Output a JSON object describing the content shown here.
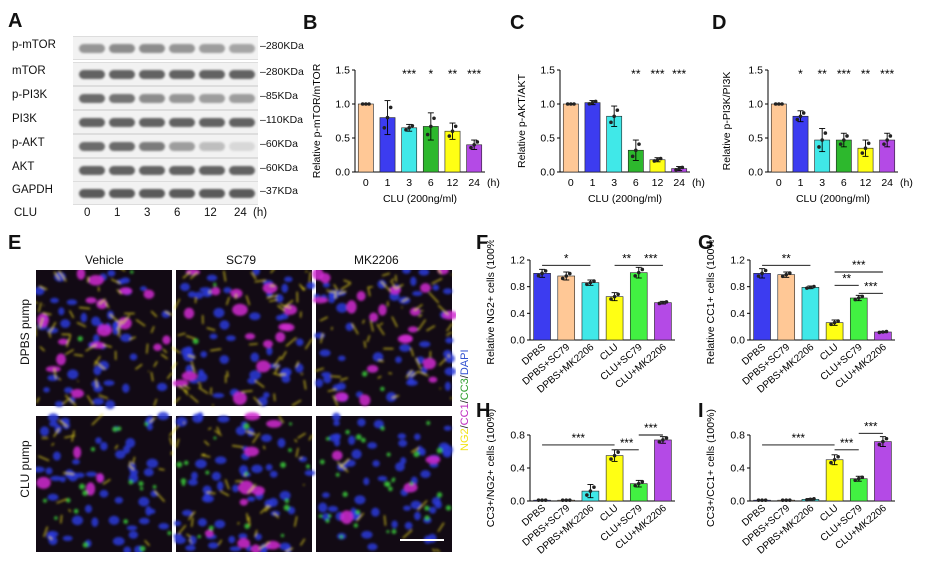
{
  "panels": {
    "A": "A",
    "B": "B",
    "C": "C",
    "D": "D",
    "E": "E",
    "F": "F",
    "G": "G",
    "H": "H",
    "I": "I"
  },
  "blot": {
    "rows": [
      {
        "name": "p-mTOR",
        "kda": "280KDa",
        "intensity": [
          0.55,
          0.6,
          0.6,
          0.55,
          0.5,
          0.45
        ]
      },
      {
        "name": "mTOR",
        "kda": "280KDa",
        "intensity": [
          0.85,
          0.85,
          0.85,
          0.85,
          0.85,
          0.85
        ]
      },
      {
        "name": "p-PI3K",
        "kda": "85KDa",
        "intensity": [
          0.8,
          0.75,
          0.6,
          0.55,
          0.5,
          0.5
        ]
      },
      {
        "name": "PI3K",
        "kda": "110KDa",
        "intensity": [
          0.85,
          0.85,
          0.85,
          0.85,
          0.85,
          0.85
        ]
      },
      {
        "name": "p-AKT",
        "kda": "60KDa",
        "intensity": [
          0.8,
          0.8,
          0.7,
          0.5,
          0.3,
          0.15
        ]
      },
      {
        "name": "AKT",
        "kda": "60KDa",
        "intensity": [
          0.85,
          0.85,
          0.85,
          0.85,
          0.85,
          0.85
        ]
      },
      {
        "name": "GAPDH",
        "kda": "37KDa",
        "intensity": [
          0.9,
          0.9,
          0.9,
          0.9,
          0.9,
          0.9
        ]
      }
    ],
    "clu_label": "CLU",
    "lanes": [
      "0",
      "1",
      "3",
      "6",
      "12",
      "24"
    ],
    "unit": "(h)"
  },
  "micro": {
    "cols": [
      "Vehicle",
      "SC79",
      "MK2206"
    ],
    "rows": [
      "DPBS pump",
      "CLU pump"
    ],
    "stain": [
      {
        "text": "NG2",
        "color": "#f2e318"
      },
      {
        "text": "/",
        "color": "#222"
      },
      {
        "text": "CC1",
        "color": "#c030c0"
      },
      {
        "text": "/",
        "color": "#222"
      },
      {
        "text": "CC3",
        "color": "#30a030"
      },
      {
        "text": "/",
        "color": "#222"
      },
      {
        "text": "DAPI",
        "color": "#3050d0"
      }
    ]
  },
  "colors": {
    "c0": "#ffc896",
    "c1": "#3c3cf0",
    "c2": "#40e8e8",
    "c3": "#2db82d",
    "c4": "#ffff14",
    "c5": "#b44ae6",
    "f0": "#3c3cf0",
    "f1": "#ffc896",
    "f2": "#40e8e8",
    "f3": "#ffff14",
    "f4": "#42f042",
    "f5": "#b44ae6"
  },
  "chart_data": [
    {
      "id": "B",
      "type": "bar",
      "ylabel": "Relative p-mTOR/mTOR",
      "xlabel": "CLU  (200ng/ml)",
      "categories": [
        "0",
        "1",
        "3",
        "6",
        "12",
        "24"
      ],
      "unit": "(h)",
      "values": [
        1.0,
        0.8,
        0.65,
        0.67,
        0.6,
        0.4
      ],
      "errors": [
        0,
        0.25,
        0.05,
        0.2,
        0.12,
        0.07
      ],
      "ylim": [
        0,
        1.5
      ],
      "yticks": [
        "0.0",
        "0.5",
        "1.0",
        "1.5"
      ],
      "sig": [
        "",
        "",
        "***",
        "*",
        "**",
        "***"
      ]
    },
    {
      "id": "C",
      "type": "bar",
      "ylabel": "Relative p-AKT/AKT",
      "xlabel": "CLU  (200ng/ml)",
      "categories": [
        "0",
        "1",
        "3",
        "6",
        "12",
        "24"
      ],
      "unit": "(h)",
      "values": [
        1.0,
        1.02,
        0.82,
        0.32,
        0.18,
        0.05
      ],
      "errors": [
        0,
        0.03,
        0.15,
        0.15,
        0.03,
        0.03
      ],
      "ylim": [
        0,
        1.5
      ],
      "yticks": [
        "0.0",
        "0.5",
        "1.0",
        "1.5"
      ],
      "sig": [
        "",
        "",
        "",
        "**",
        "***",
        "***"
      ]
    },
    {
      "id": "D",
      "type": "bar",
      "ylabel": "Relative p-PI3K/PI3K",
      "xlabel": "CLU  (200ng/ml)",
      "categories": [
        "0",
        "1",
        "3",
        "6",
        "12",
        "24"
      ],
      "unit": "(h)",
      "values": [
        1.0,
        0.82,
        0.47,
        0.47,
        0.35,
        0.47
      ],
      "errors": [
        0,
        0.08,
        0.17,
        0.1,
        0.12,
        0.1
      ],
      "ylim": [
        0,
        1.5
      ],
      "yticks": [
        "0.0",
        "0.5",
        "1.0",
        "1.5"
      ],
      "sig": [
        "",
        "*",
        "**",
        "***",
        "**",
        "***"
      ]
    },
    {
      "id": "F",
      "type": "bar",
      "ylabel": "Relative NG2+ cells (100%)",
      "categories": [
        "DPBS",
        "DPBS+SC79",
        "DPBS+MK2206",
        "CLU",
        "CLU+SC79",
        "CLU+MK2206"
      ],
      "values": [
        1.0,
        0.96,
        0.86,
        0.65,
        1.01,
        0.56
      ],
      "errors": [
        0.06,
        0.06,
        0.04,
        0.06,
        0.08,
        0.02
      ],
      "ylim": [
        0,
        1.2
      ],
      "yticks": [
        "0.0",
        "0.4",
        "0.8",
        "1.2"
      ],
      "brackets": [
        {
          "from": 0,
          "to": 2,
          "level": 1.12,
          "text": "*"
        },
        {
          "from": 3,
          "to": 4,
          "level": 1.12,
          "text": "**"
        },
        {
          "from": 4,
          "to": 5,
          "level": 1.12,
          "text": "***"
        }
      ]
    },
    {
      "id": "G",
      "type": "bar",
      "ylabel": "Relative CC1+ cells (100%)",
      "categories": [
        "DPBS",
        "DPBS+SC79",
        "DPBS+MK2206",
        "CLU",
        "CLU+SC79",
        "CLU+MK2206"
      ],
      "values": [
        1.0,
        0.98,
        0.79,
        0.26,
        0.63,
        0.12
      ],
      "errors": [
        0.07,
        0.04,
        0.02,
        0.04,
        0.04,
        0.01
      ],
      "ylim": [
        0,
        1.2
      ],
      "yticks": [
        "0.0",
        "0.4",
        "0.8",
        "1.2"
      ],
      "brackets": [
        {
          "from": 0,
          "to": 2,
          "level": 1.12,
          "text": "**"
        },
        {
          "from": 3,
          "to": 5,
          "level": 1.02,
          "text": "***"
        },
        {
          "from": 3,
          "to": 4,
          "level": 0.82,
          "text": "**"
        },
        {
          "from": 4,
          "to": 5,
          "level": 0.7,
          "text": "***"
        }
      ]
    },
    {
      "id": "H",
      "type": "bar",
      "ylabel": "CC3+/NG2+ cells (100%)",
      "categories": [
        "DPBS",
        "DPBS+SC79",
        "DPBS+MK2206",
        "CLU",
        "CLU+SC79",
        "CLU+MK2206"
      ],
      "values": [
        0.01,
        0.01,
        0.12,
        0.55,
        0.21,
        0.74
      ],
      "errors": [
        0,
        0,
        0.08,
        0.07,
        0.04,
        0.04
      ],
      "ylim": [
        0,
        0.8
      ],
      "yticks": [
        "0.0",
        "0.4",
        "0.8"
      ],
      "brackets": [
        {
          "from": 0,
          "to": 3,
          "level": 0.68,
          "text": "***"
        },
        {
          "from": 3,
          "to": 4,
          "level": 0.62,
          "text": "***"
        },
        {
          "from": 4,
          "to": 5,
          "level": 0.8,
          "text": "***"
        }
      ]
    },
    {
      "id": "I",
      "type": "bar",
      "ylabel": "CC3+/CC1+ cells (100%)",
      "categories": [
        "DPBS",
        "DPBS+SC79",
        "DPBS+MK2206",
        "CLU",
        "CLU+SC79",
        "CLU+MK2206"
      ],
      "values": [
        0.01,
        0.01,
        0.02,
        0.5,
        0.27,
        0.72
      ],
      "errors": [
        0,
        0,
        0.01,
        0.06,
        0.03,
        0.06
      ],
      "ylim": [
        0,
        0.8
      ],
      "yticks": [
        "0.0",
        "0.4",
        "0.8"
      ],
      "brackets": [
        {
          "from": 0,
          "to": 3,
          "level": 0.68,
          "text": "***"
        },
        {
          "from": 3,
          "to": 4,
          "level": 0.62,
          "text": "***"
        },
        {
          "from": 4,
          "to": 5,
          "level": 0.82,
          "text": "***"
        }
      ]
    }
  ]
}
